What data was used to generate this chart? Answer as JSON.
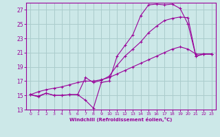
{
  "bg_color": "#cce8e8",
  "grid_color": "#aacccc",
  "line_color": "#990099",
  "xlabel": "Windchill (Refroidissement éolien,°C)",
  "xlabel_color": "#990099",
  "tick_color": "#990099",
  "xlim": [
    -0.5,
    23.5
  ],
  "ylim": [
    13,
    28
  ],
  "yticks": [
    13,
    15,
    17,
    19,
    21,
    23,
    25,
    27
  ],
  "xticks": [
    0,
    1,
    2,
    3,
    4,
    5,
    6,
    7,
    8,
    9,
    10,
    11,
    12,
    13,
    14,
    15,
    16,
    17,
    18,
    19,
    20,
    21,
    22,
    23
  ],
  "series": [
    [
      15.1,
      14.8,
      15.3,
      15.0,
      15.0,
      15.1,
      15.1,
      14.3,
      13.2,
      16.8,
      17.0,
      20.5,
      22.0,
      23.5,
      26.2,
      27.7,
      27.8,
      27.7,
      27.8,
      27.2,
      25.0,
      20.5,
      20.8,
      20.8
    ],
    [
      15.1,
      14.9,
      15.3,
      15.0,
      15.0,
      15.1,
      15.1,
      17.5,
      16.8,
      17.1,
      17.7,
      19.2,
      20.5,
      21.5,
      22.5,
      23.8,
      24.7,
      25.5,
      25.8,
      26.0,
      25.9,
      20.5,
      20.8,
      20.8
    ],
    [
      15.1,
      15.5,
      15.8,
      16.0,
      16.2,
      16.5,
      16.8,
      17.0,
      17.0,
      17.2,
      17.5,
      18.0,
      18.5,
      19.0,
      19.5,
      20.0,
      20.5,
      21.0,
      21.5,
      21.8,
      21.5,
      20.8,
      20.8,
      20.8
    ]
  ]
}
